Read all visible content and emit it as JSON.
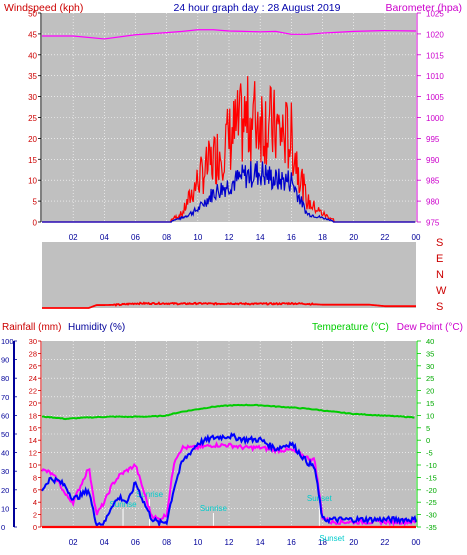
{
  "title": "24 hour graph day : 28 August 2019",
  "colors": {
    "panel": "#c0c0c0",
    "grid": "#ffffff",
    "wind_red": "#ff0000",
    "wind_blue": "#0000cc",
    "baro": "#ff00ff",
    "dir_red": "#ff0000",
    "rain": "#cc0000",
    "humidity": "#000099",
    "temp": "#00cc00",
    "dew": "#ff00ff",
    "hum_line": "#0000ff",
    "tag": "#00cccc"
  },
  "hour_ticks": [
    "02",
    "04",
    "06",
    "08",
    "10",
    "12",
    "14",
    "16",
    "18",
    "20",
    "22",
    "00"
  ],
  "wind_chart": {
    "left_label": "Windspeed (kph)",
    "right_label": "Barometer (hpa)",
    "left_ticks": [
      "0",
      "5",
      "10",
      "15",
      "20",
      "25",
      "30",
      "35",
      "40",
      "45",
      "50"
    ],
    "right_ticks": [
      "975",
      "980",
      "985",
      "990",
      "995",
      "1000",
      "1005",
      "1010",
      "1015",
      "1020",
      "1025"
    ],
    "ylim": [
      0,
      50
    ],
    "baro_lim": [
      975,
      1025
    ]
  },
  "dir_chart": {
    "labels": [
      "S",
      "E",
      "N",
      "W",
      "S"
    ]
  },
  "rain_chart": {
    "rain_label": "Rainfall (mm)",
    "hum_label": "Humidity (%)",
    "temp_label": "Temperature (°C)",
    "dew_label": "Dew Point (°C)",
    "hum_ticks": [
      "0",
      "10",
      "20",
      "30",
      "40",
      "50",
      "60",
      "70",
      "80",
      "90",
      "100"
    ],
    "rain_ticks": [
      "0",
      "2",
      "4",
      "6",
      "8",
      "10",
      "12",
      "14",
      "16",
      "18",
      "20",
      "22",
      "24",
      "26",
      "28",
      "30"
    ],
    "temp_ticks": [
      "-35",
      "-30",
      "-25",
      "-20",
      "-15",
      "-10",
      "-5",
      "0",
      "5",
      "10",
      "15",
      "20",
      "25",
      "30",
      "35",
      "40"
    ],
    "annotations": [
      {
        "text": "Sunrise",
        "hour": 5.2
      },
      {
        "text": "Sunrise",
        "hour": 6.9
      },
      {
        "text": "Sunrise",
        "hour": 11.0
      },
      {
        "text": "Sunset",
        "hour": 17.8
      },
      {
        "text": "Sunset",
        "hour": 18.6
      }
    ]
  },
  "chart_data": [
    {
      "type": "line",
      "title": "24 hour graph day : 28 August 2019",
      "ylabel": "Windspeed (kph)",
      "y2label": "Barometer (hpa)",
      "x": [
        0,
        2,
        4,
        6,
        8,
        9,
        10,
        11,
        12,
        13,
        14,
        15,
        16,
        17,
        18,
        19,
        20,
        22,
        24
      ],
      "series": [
        {
          "name": "Windspeed (kph)",
          "axis": "left",
          "values": [
            0,
            0,
            0,
            0,
            0,
            2,
            10,
            15,
            20,
            24,
            25,
            22,
            20,
            5,
            2,
            0,
            0,
            0,
            0
          ]
        },
        {
          "name": "",
          "axis": "left",
          "values": [
            0,
            0,
            0,
            0,
            0,
            1,
            3,
            7,
            9,
            11,
            12,
            10,
            10,
            2,
            1,
            0,
            0,
            0,
            0
          ]
        },
        {
          "name": "Barometer (hpa)",
          "axis": "right",
          "values": [
            1019.5,
            1019.5,
            1018.8,
            1019.8,
            1020.3,
            1020.6,
            1021,
            1021,
            1020.7,
            1020.6,
            1020.5,
            1020.6,
            1019.9,
            1019.9,
            1020.2,
            1020.4,
            1020.6,
            1020.8,
            1020.7
          ]
        }
      ],
      "ylim": [
        0,
        50
      ],
      "y2lim": [
        975,
        1025
      ]
    },
    {
      "type": "line",
      "title": "",
      "ylabel": "Wind direction",
      "ytick_labels": [
        "S",
        "E",
        "N",
        "W",
        "S"
      ],
      "x": [
        0,
        2,
        3,
        3.5,
        4,
        5,
        6,
        7,
        8,
        9,
        10,
        11,
        12,
        13,
        14,
        15,
        16,
        17,
        18,
        19,
        20,
        21,
        22,
        23,
        24
      ],
      "series": [
        {
          "name": "",
          "values": [
            180,
            180,
            180,
            196,
            196,
            198,
            205,
            205,
            205,
            203,
            205,
            203,
            205,
            203,
            203,
            203,
            205,
            203,
            198,
            198,
            198,
            198,
            190,
            190,
            190
          ]
        }
      ]
    },
    {
      "type": "line",
      "title": "",
      "ylabel": "Rainfall (mm) / Humidity (%)",
      "y2label": "Temperature (°C) / Dew Point (°C)",
      "x": [
        0,
        0.5,
        1,
        1.5,
        2,
        2.5,
        3,
        3.3,
        3.5,
        4,
        4.5,
        5,
        5.5,
        6,
        6.5,
        7,
        7.5,
        8,
        8.5,
        9,
        10,
        11,
        12,
        13,
        14,
        15,
        16,
        17,
        17.5,
        18,
        18.5,
        20,
        24
      ],
      "series": [
        {
          "name": "Humidity (%)",
          "axis": "hum",
          "values": [
            20,
            26,
            25,
            22,
            15,
            17,
            20,
            8,
            2,
            2,
            12,
            16,
            13,
            24,
            14,
            5,
            2,
            3,
            22,
            35,
            45,
            48,
            49,
            47,
            47,
            42,
            45,
            35,
            32,
            4,
            4,
            4,
            4
          ]
        },
        {
          "name": "Temperature (°C)",
          "axis": "temp",
          "values": [
            9.5,
            9.3,
            9,
            8.6,
            8.8,
            9,
            9.2,
            9.2,
            9.3,
            9.4,
            9.5,
            9.5,
            9.4,
            9.5,
            9.5,
            9.6,
            9.7,
            10,
            10.8,
            11.5,
            12.5,
            13.5,
            14,
            14.2,
            14.1,
            13.6,
            13.2,
            12.7,
            12.4,
            12,
            11.6,
            10.6,
            9.2
          ]
        },
        {
          "name": "Dew Point (°C)",
          "axis": "temp",
          "values": [
            -12,
            -13,
            -16,
            -22,
            -25,
            -18,
            -11,
            -22,
            -30,
            -25,
            -18,
            -14,
            -12,
            -10,
            -20,
            -30,
            -32,
            -30,
            -8,
            -3,
            -3,
            -2,
            -2,
            -3,
            -3,
            -4,
            -4,
            -7,
            -8,
            -31,
            -33,
            -33,
            -33
          ]
        },
        {
          "name": "Rainfall (mm)",
          "axis": "rain",
          "values": [
            0,
            0,
            0,
            0,
            0,
            0,
            0,
            0,
            0,
            0,
            0,
            0,
            0,
            0,
            0,
            0,
            0,
            0,
            0,
            0,
            0,
            0,
            0,
            0,
            0,
            0,
            0,
            0,
            0,
            0,
            0,
            0,
            0
          ]
        }
      ],
      "hum_lim": [
        0,
        100
      ],
      "rain_lim": [
        0,
        30
      ],
      "temp_lim": [
        -35,
        40
      ]
    }
  ]
}
